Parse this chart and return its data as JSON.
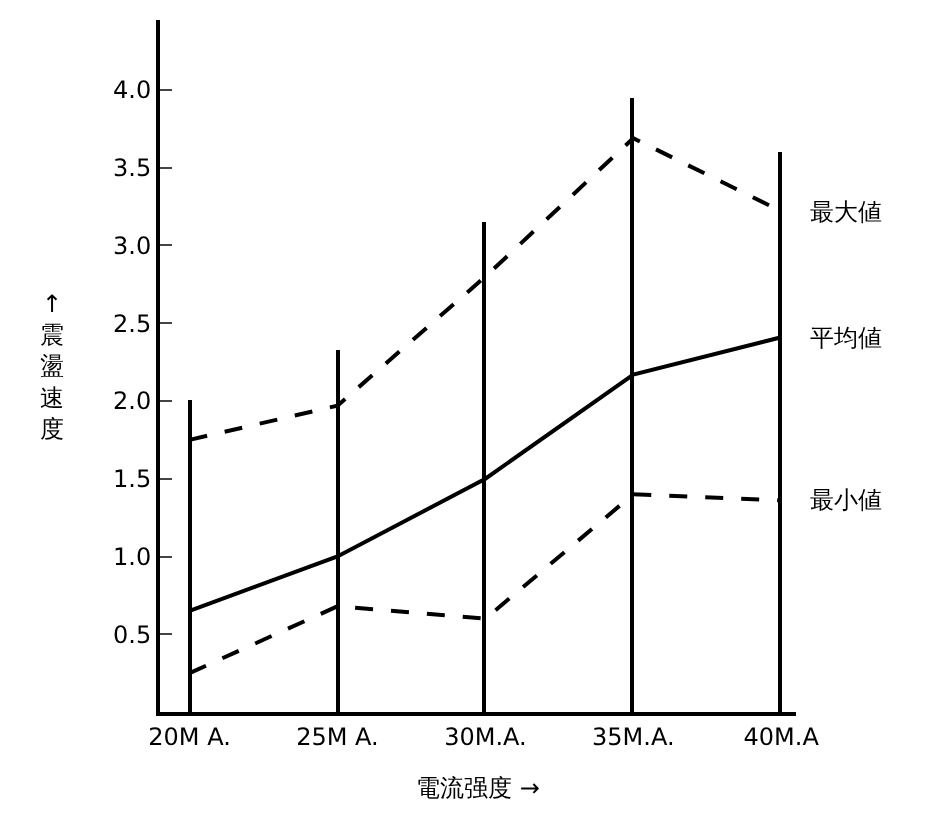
{
  "chart_data": {
    "type": "line",
    "xlabel": "電流强度 →",
    "ylabel": "↑震盪速度",
    "categories": [
      "20M A.",
      "25M A.",
      "30M.A.",
      "35M.A.",
      "40M.A"
    ],
    "series": [
      {
        "type": "bar",
        "color": "#000000",
        "values": [
          2.0,
          2.33,
          3.15,
          3.95,
          3.6
        ]
      },
      {
        "name": "最大値",
        "color": "#000000",
        "line_style": "dashed",
        "values": [
          1.75,
          1.97,
          2.8,
          3.69,
          3.22
        ]
      },
      {
        "name": "平均値",
        "color": "#000000",
        "line_style": "solid",
        "values": [
          0.65,
          1.0,
          1.5,
          2.17,
          2.41
        ]
      },
      {
        "name": "最小値",
        "color": "#000000",
        "line_style": "dashed",
        "values": [
          0.25,
          0.68,
          0.6,
          1.4,
          1.36
        ]
      }
    ],
    "ylim": [
      0,
      4.45
    ],
    "yticks": [
      0.5,
      {
        "value": 1,
        "label": "1.0"
      },
      1.5,
      {
        "value": 2,
        "label": "2.0"
      },
      2.5,
      {
        "value": 3,
        "label": "3.0"
      },
      3.5,
      {
        "value": 4,
        "label": "4.0"
      }
    ],
    "legend": false,
    "marker": "none"
  }
}
